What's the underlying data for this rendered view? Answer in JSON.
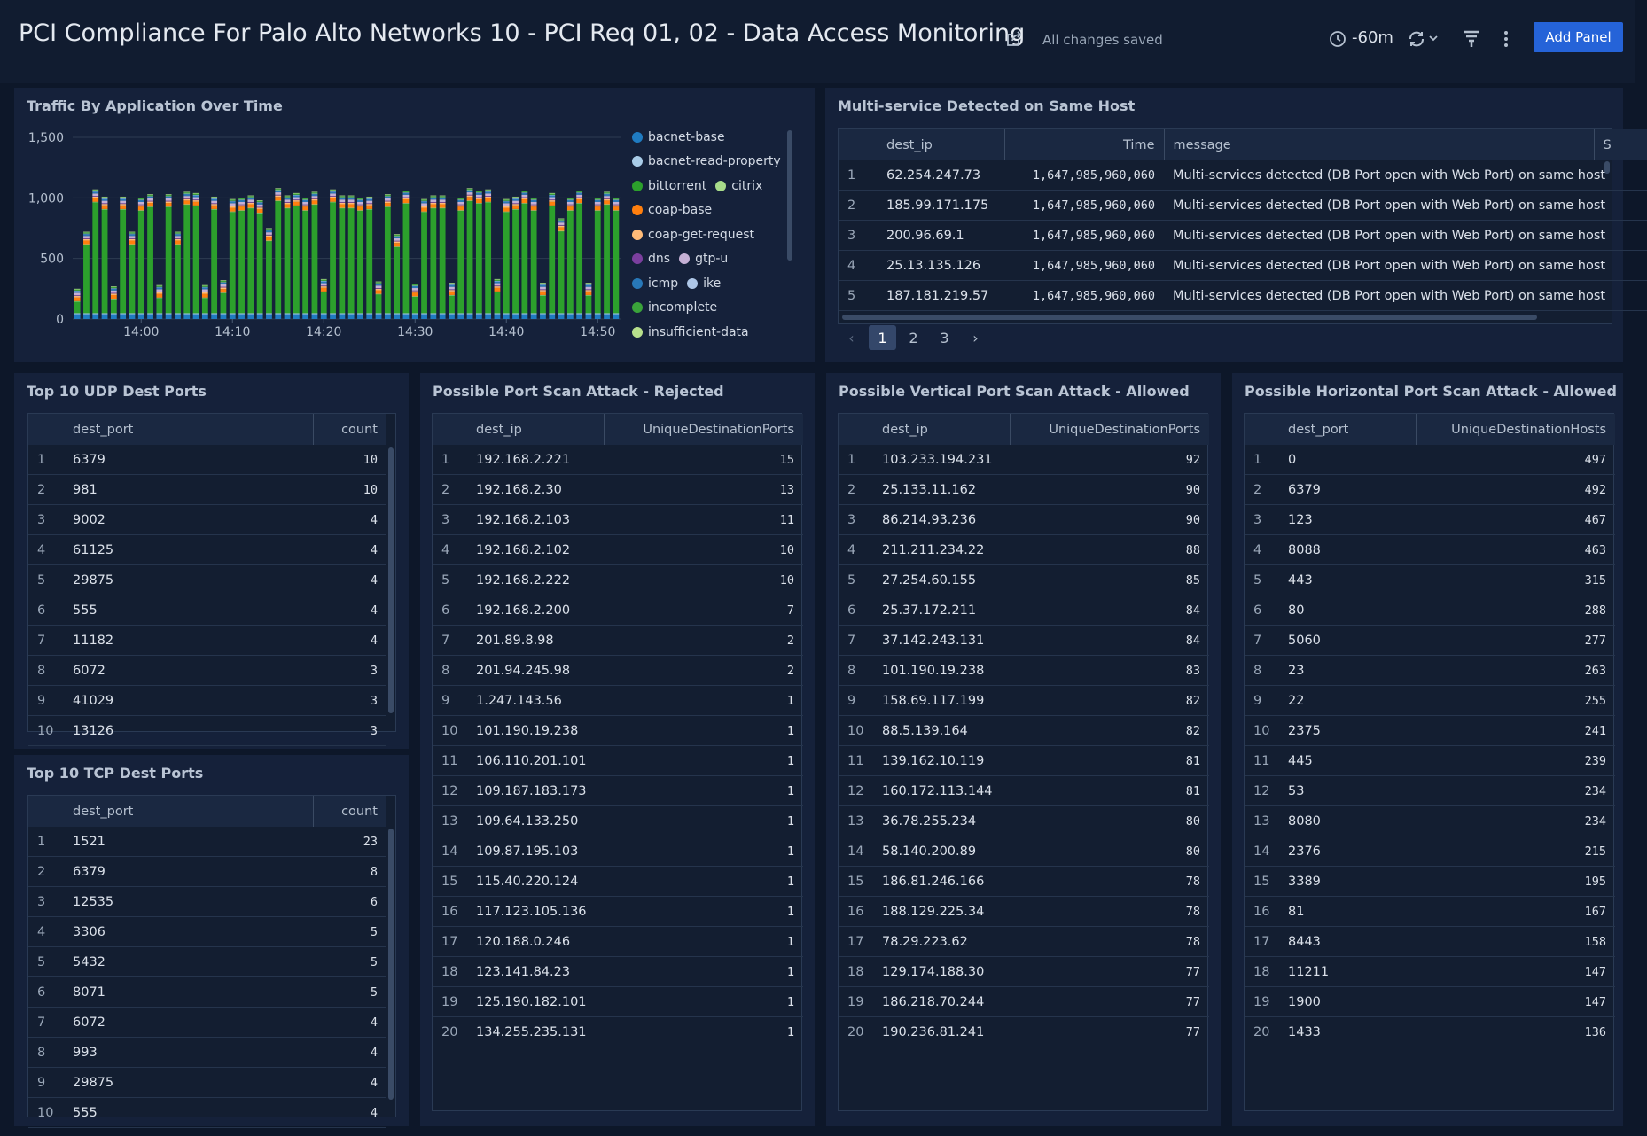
{
  "header": {
    "title": "PCI Compliance For Palo Alto Networks 10 - PCI Req 01, 02 - Data Access Monitoring",
    "status": "All changes saved",
    "time_range": "-60m",
    "add_panel": "Add Panel"
  },
  "chart_data": {
    "type": "bar",
    "stacked": true,
    "title": "Traffic By Application Over Time",
    "categories": [
      null,
      null,
      null,
      null,
      null,
      null,
      null,
      "14:00",
      null,
      null,
      null,
      null,
      null,
      null,
      null,
      null,
      null,
      "14:10",
      null,
      null,
      null,
      null,
      null,
      null,
      null,
      null,
      null,
      "14:20",
      null,
      null,
      null,
      null,
      null,
      null,
      null,
      null,
      null,
      "14:30",
      null,
      null,
      null,
      null,
      null,
      null,
      null,
      null,
      null,
      "14:40",
      null,
      null,
      null,
      null,
      null,
      null,
      null,
      null,
      null,
      "14:50",
      null,
      null
    ],
    "series": [
      {
        "name": "bacnet-base",
        "color": "#1f7bc1",
        "values": [
          40,
          40,
          40,
          40,
          40,
          40,
          40,
          40,
          40,
          40,
          40,
          40,
          40,
          40,
          40,
          40,
          40,
          40,
          40,
          40,
          40,
          40,
          40,
          40,
          40,
          40,
          40,
          40,
          40,
          40,
          40,
          40,
          40,
          40,
          40,
          40,
          40,
          40,
          40,
          40,
          40,
          40,
          40,
          40,
          40,
          40,
          40,
          40,
          40,
          40,
          40,
          40,
          40,
          40,
          40,
          40,
          40,
          40,
          40,
          40
        ]
      },
      {
        "name": "bacnet-read-property",
        "color": "#a9cce8",
        "values": [
          8,
          8,
          8,
          8,
          8,
          8,
          8,
          8,
          8,
          8,
          8,
          8,
          8,
          8,
          8,
          8,
          8,
          8,
          8,
          8,
          8,
          8,
          8,
          8,
          8,
          8,
          8,
          8,
          8,
          8,
          8,
          8,
          8,
          8,
          8,
          8,
          8,
          8,
          8,
          8,
          8,
          8,
          8,
          8,
          8,
          8,
          8,
          8,
          8,
          8,
          8,
          8,
          8,
          8,
          8,
          8,
          8,
          8,
          8,
          8
        ]
      },
      {
        "name": "bittorrent",
        "color": "#2ca02c",
        "values": [
          95,
          565,
          915,
          855,
          115,
          855,
          565,
          845,
          875,
          125,
          875,
          565,
          895,
          885,
          125,
          855,
          165,
          835,
          845,
          865,
          825,
          595,
          925,
          865,
          885,
          845,
          895,
          175,
          915,
          865,
          865,
          845,
          855,
          155,
          875,
          545,
          905,
          135,
          835,
          865,
          865,
          145,
          845,
          925,
          905,
          915,
          175,
          835,
          855,
          905,
          845,
          145,
          885,
          675,
          845,
          905,
          145,
          845,
          895,
          845
        ]
      },
      {
        "name": "citrix",
        "color": "#a8dc8a",
        "values": [
          5,
          5,
          5,
          5,
          5,
          5,
          5,
          5,
          5,
          5,
          5,
          5,
          5,
          5,
          5,
          5,
          5,
          5,
          5,
          5,
          5,
          5,
          5,
          5,
          5,
          5,
          5,
          5,
          5,
          5,
          5,
          5,
          5,
          5,
          5,
          5,
          5,
          5,
          5,
          5,
          5,
          5,
          5,
          5,
          5,
          5,
          5,
          5,
          5,
          5,
          5,
          5,
          5,
          5,
          5,
          5,
          5,
          5,
          5,
          5
        ]
      },
      {
        "name": "coap-base",
        "color": "#ff7f0e",
        "values": [
          30,
          30,
          30,
          30,
          30,
          30,
          30,
          30,
          30,
          30,
          30,
          30,
          30,
          30,
          30,
          30,
          30,
          30,
          30,
          30,
          30,
          30,
          30,
          30,
          30,
          30,
          30,
          30,
          30,
          30,
          30,
          30,
          30,
          30,
          30,
          30,
          30,
          30,
          30,
          30,
          30,
          30,
          30,
          30,
          30,
          30,
          30,
          30,
          30,
          30,
          30,
          30,
          30,
          30,
          30,
          30,
          30,
          30,
          30,
          30
        ]
      },
      {
        "name": "coap-get-request",
        "color": "#ffbb78",
        "values": [
          12,
          12,
          12,
          12,
          12,
          12,
          12,
          12,
          12,
          12,
          12,
          12,
          12,
          12,
          12,
          12,
          12,
          12,
          12,
          12,
          12,
          12,
          12,
          12,
          12,
          12,
          12,
          12,
          12,
          12,
          12,
          12,
          12,
          12,
          12,
          12,
          12,
          12,
          12,
          12,
          12,
          12,
          12,
          12,
          12,
          12,
          12,
          12,
          12,
          12,
          12,
          12,
          12,
          12,
          12,
          12,
          12,
          12,
          12,
          12
        ]
      },
      {
        "name": "dns",
        "color": "#7b3f9e",
        "values": [
          6,
          6,
          6,
          6,
          6,
          6,
          6,
          6,
          6,
          6,
          6,
          6,
          6,
          6,
          6,
          6,
          6,
          6,
          6,
          6,
          6,
          6,
          6,
          6,
          6,
          6,
          6,
          6,
          6,
          6,
          6,
          6,
          6,
          6,
          6,
          6,
          6,
          6,
          6,
          6,
          6,
          6,
          6,
          6,
          6,
          6,
          6,
          6,
          6,
          6,
          6,
          6,
          6,
          6,
          6,
          6,
          6,
          6,
          6,
          6
        ]
      },
      {
        "name": "gtp-u",
        "color": "#c5b0d5",
        "values": [
          20,
          20,
          20,
          20,
          20,
          20,
          20,
          20,
          20,
          20,
          20,
          20,
          20,
          20,
          20,
          20,
          20,
          20,
          20,
          20,
          20,
          20,
          20,
          20,
          20,
          20,
          20,
          20,
          20,
          20,
          20,
          20,
          20,
          20,
          20,
          20,
          20,
          20,
          20,
          20,
          20,
          20,
          20,
          20,
          20,
          20,
          20,
          20,
          20,
          20,
          20,
          20,
          20,
          20,
          20,
          20,
          20,
          20,
          20,
          20
        ]
      },
      {
        "name": "icmp",
        "color": "#2878b8",
        "values": [
          15,
          15,
          15,
          15,
          15,
          15,
          15,
          15,
          15,
          15,
          15,
          15,
          15,
          15,
          15,
          15,
          15,
          15,
          15,
          15,
          15,
          15,
          15,
          15,
          15,
          15,
          15,
          15,
          15,
          15,
          15,
          15,
          15,
          15,
          15,
          15,
          15,
          15,
          15,
          15,
          15,
          15,
          15,
          15,
          15,
          15,
          15,
          15,
          15,
          15,
          15,
          15,
          15,
          15,
          15,
          15,
          15,
          15,
          15,
          15
        ]
      },
      {
        "name": "ike",
        "color": "#aec7e8",
        "values": [
          4,
          4,
          4,
          4,
          4,
          4,
          4,
          4,
          4,
          4,
          4,
          4,
          4,
          4,
          4,
          4,
          4,
          4,
          4,
          4,
          4,
          4,
          4,
          4,
          4,
          4,
          4,
          4,
          4,
          4,
          4,
          4,
          4,
          4,
          4,
          4,
          4,
          4,
          4,
          4,
          4,
          4,
          4,
          4,
          4,
          4,
          4,
          4,
          4,
          4,
          4,
          4,
          4,
          4,
          4,
          4,
          4,
          4,
          4,
          4
        ]
      },
      {
        "name": "incomplete",
        "color": "#3aa33a",
        "values": [
          10,
          10,
          10,
          10,
          10,
          10,
          10,
          10,
          10,
          10,
          10,
          10,
          10,
          10,
          10,
          10,
          10,
          10,
          10,
          10,
          10,
          10,
          10,
          10,
          10,
          10,
          10,
          10,
          10,
          10,
          10,
          10,
          10,
          10,
          10,
          10,
          10,
          10,
          10,
          10,
          10,
          10,
          10,
          10,
          10,
          10,
          10,
          10,
          10,
          10,
          10,
          10,
          10,
          10,
          10,
          10,
          10,
          10,
          10,
          10
        ]
      },
      {
        "name": "insufficient-data",
        "color": "#b8e08c",
        "values": [
          5,
          5,
          5,
          5,
          5,
          5,
          5,
          5,
          5,
          5,
          5,
          5,
          5,
          5,
          5,
          5,
          5,
          5,
          5,
          5,
          5,
          5,
          5,
          5,
          5,
          5,
          5,
          5,
          5,
          5,
          5,
          5,
          5,
          5,
          5,
          5,
          5,
          5,
          5,
          5,
          5,
          5,
          5,
          5,
          5,
          5,
          5,
          5,
          5,
          5,
          5,
          5,
          5,
          5,
          5,
          5,
          5,
          5,
          5,
          5
        ]
      }
    ],
    "ylim": [
      0,
      1500
    ],
    "yticks": [
      0,
      500,
      {
        "value": 1000,
        "label": "1,000"
      },
      {
        "value": 1500,
        "label": "1,500"
      }
    ],
    "grid": true,
    "legend": "right"
  },
  "tables": [
    {
      "title": "Multi-service Detected on Same Host",
      "columns": [
        "dest_ip",
        "Time",
        "message",
        "S"
      ],
      "pages": [
        1,
        2,
        3
      ],
      "rows": [
        [
          1,
          "62.254.247.73",
          "1,647,985,960,060",
          "Multi-services detected (DB Port open with Web Port) on same host"
        ],
        [
          2,
          "185.99.171.175",
          "1,647,985,960,060",
          "Multi-services detected (DB Port open with Web Port) on same host"
        ],
        [
          3,
          "200.96.69.1",
          "1,647,985,960,060",
          "Multi-services detected (DB Port open with Web Port) on same host"
        ],
        [
          4,
          "25.13.135.126",
          "1,647,985,960,060",
          "Multi-services detected (DB Port open with Web Port) on same host"
        ],
        [
          5,
          "187.181.219.57",
          "1,647,985,960,060",
          "Multi-services detected (DB Port open with Web Port) on same host"
        ]
      ]
    },
    {
      "title": "Top 10 UDP Dest Ports",
      "columns": [
        "dest_port",
        "count"
      ],
      "rows": [
        [
          1,
          6379,
          10
        ],
        [
          2,
          981,
          10
        ],
        [
          3,
          9002,
          4
        ],
        [
          4,
          61125,
          4
        ],
        [
          5,
          29875,
          4
        ],
        [
          6,
          555,
          4
        ],
        [
          7,
          11182,
          4
        ],
        [
          8,
          6072,
          3
        ],
        [
          9,
          41029,
          3
        ],
        [
          10,
          13126,
          3
        ]
      ]
    },
    {
      "title": "Top 10 TCP Dest Ports",
      "columns": [
        "dest_port",
        "count"
      ],
      "rows": [
        [
          1,
          1521,
          23
        ],
        [
          2,
          6379,
          8
        ],
        [
          3,
          12535,
          6
        ],
        [
          4,
          3306,
          5
        ],
        [
          5,
          5432,
          5
        ],
        [
          6,
          8071,
          5
        ],
        [
          7,
          6072,
          4
        ],
        [
          8,
          993,
          4
        ],
        [
          9,
          29875,
          4
        ],
        [
          10,
          555,
          4
        ]
      ]
    },
    {
      "title": "Possible Port Scan Attack - Rejected",
      "columns": [
        "dest_ip",
        "UniqueDestinationPorts"
      ],
      "rows": [
        [
          1,
          "192.168.2.221",
          15
        ],
        [
          2,
          "192.168.2.30",
          13
        ],
        [
          3,
          "192.168.2.103",
          11
        ],
        [
          4,
          "192.168.2.102",
          10
        ],
        [
          5,
          "192.168.2.222",
          10
        ],
        [
          6,
          "192.168.2.200",
          7
        ],
        [
          7,
          "201.89.8.98",
          2
        ],
        [
          8,
          "201.94.245.98",
          2
        ],
        [
          9,
          "1.247.143.56",
          1
        ],
        [
          10,
          "101.190.19.238",
          1
        ],
        [
          11,
          "106.110.201.101",
          1
        ],
        [
          12,
          "109.187.183.173",
          1
        ],
        [
          13,
          "109.64.133.250",
          1
        ],
        [
          14,
          "109.87.195.103",
          1
        ],
        [
          15,
          "115.40.220.124",
          1
        ],
        [
          16,
          "117.123.105.136",
          1
        ],
        [
          17,
          "120.188.0.246",
          1
        ],
        [
          18,
          "123.141.84.23",
          1
        ],
        [
          19,
          "125.190.182.101",
          1
        ],
        [
          20,
          "134.255.235.131",
          1
        ]
      ]
    },
    {
      "title": "Possible Vertical Port Scan Attack - Allowed",
      "columns": [
        "dest_ip",
        "UniqueDestinationPorts"
      ],
      "rows": [
        [
          1,
          "103.233.194.231",
          92
        ],
        [
          2,
          "25.133.11.162",
          90
        ],
        [
          3,
          "86.214.93.236",
          90
        ],
        [
          4,
          "211.211.234.22",
          88
        ],
        [
          5,
          "27.254.60.155",
          85
        ],
        [
          6,
          "25.37.172.211",
          84
        ],
        [
          7,
          "37.142.243.131",
          84
        ],
        [
          8,
          "101.190.19.238",
          83
        ],
        [
          9,
          "158.69.117.199",
          82
        ],
        [
          10,
          "88.5.139.164",
          82
        ],
        [
          11,
          "139.162.10.119",
          81
        ],
        [
          12,
          "160.172.113.144",
          81
        ],
        [
          13,
          "36.78.255.234",
          80
        ],
        [
          14,
          "58.140.200.89",
          80
        ],
        [
          15,
          "186.81.246.166",
          78
        ],
        [
          16,
          "188.129.225.34",
          78
        ],
        [
          17,
          "78.29.223.62",
          78
        ],
        [
          18,
          "129.174.188.30",
          77
        ],
        [
          19,
          "186.218.70.244",
          77
        ],
        [
          20,
          "190.236.81.241",
          77
        ]
      ]
    },
    {
      "title": "Possible Horizontal Port Scan Attack - Allowed",
      "columns": [
        "dest_port",
        "UniqueDestinationHosts"
      ],
      "rows": [
        [
          1,
          0,
          497
        ],
        [
          2,
          6379,
          492
        ],
        [
          3,
          123,
          467
        ],
        [
          4,
          8088,
          463
        ],
        [
          5,
          443,
          315
        ],
        [
          6,
          80,
          288
        ],
        [
          7,
          5060,
          277
        ],
        [
          8,
          23,
          263
        ],
        [
          9,
          22,
          255
        ],
        [
          10,
          2375,
          241
        ],
        [
          11,
          445,
          239
        ],
        [
          12,
          53,
          234
        ],
        [
          13,
          8080,
          234
        ],
        [
          14,
          2376,
          215
        ],
        [
          15,
          3389,
          195
        ],
        [
          16,
          81,
          167
        ],
        [
          17,
          8443,
          158
        ],
        [
          18,
          11211,
          147
        ],
        [
          19,
          1900,
          147
        ],
        [
          20,
          1433,
          136
        ]
      ]
    }
  ]
}
